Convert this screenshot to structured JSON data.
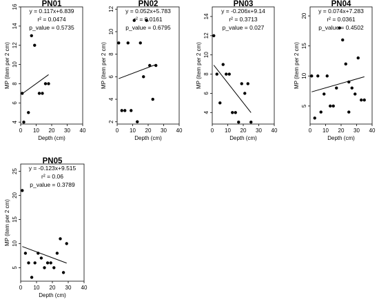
{
  "chart_data": [
    {
      "type": "scatter",
      "title": "PN01",
      "stats": [
        "y = 0.117x+6.839",
        "r² = 0.0474",
        "p_value = 0.5735"
      ],
      "xlabel": "Depth (cm)",
      "ylabel": "MP (item per 2 cm)",
      "xlim": [
        0,
        40
      ],
      "ylim": [
        3.8,
        16
      ],
      "xticks": [
        0,
        10,
        20,
        30,
        40
      ],
      "yticks": [
        4,
        6,
        8,
        10,
        12,
        14,
        16
      ],
      "points": [
        [
          1,
          7
        ],
        [
          2,
          4
        ],
        [
          5,
          5
        ],
        [
          7,
          13
        ],
        [
          9,
          12
        ],
        [
          12,
          7
        ],
        [
          14,
          7
        ],
        [
          16,
          8
        ],
        [
          18,
          8
        ]
      ],
      "fit": {
        "slope": 0.117,
        "intercept": 6.839,
        "x_range": [
          1,
          18
        ]
      }
    },
    {
      "type": "scatter",
      "title": "PN02",
      "stats": [
        "y = 0.052x+5.783",
        "r² = 0.0161",
        "p_value = 0.6795"
      ],
      "xlabel": "Depth (cm)",
      "ylabel": "MP (item per 2 cm)",
      "xlim": [
        0,
        40
      ],
      "ylim": [
        1.8,
        12.2
      ],
      "xticks": [
        0,
        10,
        20,
        30,
        40
      ],
      "yticks": [
        2,
        4,
        6,
        8,
        10,
        12
      ],
      "points": [
        [
          1,
          9
        ],
        [
          3,
          3
        ],
        [
          5,
          3
        ],
        [
          7,
          9
        ],
        [
          9,
          3
        ],
        [
          11,
          11
        ],
        [
          13,
          2
        ],
        [
          15,
          9
        ],
        [
          17,
          6
        ],
        [
          19,
          11
        ],
        [
          21,
          7
        ],
        [
          23,
          4
        ],
        [
          25,
          7
        ]
      ],
      "fit": {
        "slope": 0.052,
        "intercept": 5.783,
        "x_range": [
          1,
          25
        ]
      }
    },
    {
      "type": "scatter",
      "title": "PN03",
      "stats": [
        "y = -0.206x+9.14",
        "r² = 0.3713",
        "p_value = 0.027"
      ],
      "xlabel": "Depth (cm)",
      "ylabel": "MP (item per 2 cm)",
      "xlim": [
        0,
        40
      ],
      "ylim": [
        2.8,
        15
      ],
      "xticks": [
        0,
        10,
        20,
        30,
        40
      ],
      "yticks": [
        4,
        6,
        8,
        10,
        12,
        14
      ],
      "points": [
        [
          1,
          12
        ],
        [
          3,
          8
        ],
        [
          5,
          5
        ],
        [
          7,
          9
        ],
        [
          9,
          8
        ],
        [
          11,
          8
        ],
        [
          13,
          4
        ],
        [
          15,
          4
        ],
        [
          17,
          3
        ],
        [
          19,
          7
        ],
        [
          21,
          6
        ],
        [
          23,
          7
        ],
        [
          25,
          3
        ]
      ],
      "fit": {
        "slope": -0.206,
        "intercept": 9.14,
        "x_range": [
          1,
          25
        ]
      }
    },
    {
      "type": "scatter",
      "title": "PN04",
      "stats": [
        "y = 0.074x+7.283",
        "r² = 0.0361",
        "p_value = 0.4502"
      ],
      "xlabel": "Depth (cm)",
      "ylabel": "MP (item per 2 cm)",
      "xlim": [
        0,
        40
      ],
      "ylim": [
        2,
        21.5
      ],
      "xticks": [
        0,
        10,
        20,
        30,
        40
      ],
      "yticks": [
        5,
        10,
        15,
        20
      ],
      "points": [
        [
          1,
          10
        ],
        [
          3,
          3
        ],
        [
          5,
          10
        ],
        [
          7,
          4
        ],
        [
          9,
          7
        ],
        [
          11,
          10
        ],
        [
          13,
          5
        ],
        [
          15,
          5
        ],
        [
          17,
          8
        ],
        [
          19,
          18
        ],
        [
          21,
          16
        ],
        [
          23,
          12
        ],
        [
          25,
          9
        ],
        [
          25,
          4
        ],
        [
          27,
          8
        ],
        [
          29,
          7
        ],
        [
          31,
          13
        ],
        [
          33,
          6
        ],
        [
          35,
          6
        ]
      ],
      "fit": {
        "slope": 0.074,
        "intercept": 7.283,
        "x_range": [
          1,
          35
        ]
      }
    },
    {
      "type": "scatter",
      "title": "PN05",
      "stats": [
        "y = -0.123x+9.515",
        "r² = 0.06",
        "p_value = 0.3789"
      ],
      "xlabel": "Depth (cm)",
      "ylabel": "MP (item per 2 cm)",
      "xlim": [
        0,
        40
      ],
      "ylim": [
        2.2,
        26.5
      ],
      "xticks": [
        0,
        10,
        20,
        30,
        40
      ],
      "yticks": [
        5,
        10,
        15,
        20,
        25
      ],
      "points": [
        [
          1,
          21
        ],
        [
          3,
          8
        ],
        [
          5,
          6
        ],
        [
          7,
          3
        ],
        [
          9,
          6
        ],
        [
          11,
          8
        ],
        [
          13,
          7
        ],
        [
          15,
          5
        ],
        [
          17,
          6
        ],
        [
          19,
          6
        ],
        [
          21,
          5
        ],
        [
          23,
          8
        ],
        [
          25,
          11
        ],
        [
          27,
          4
        ],
        [
          29,
          10
        ]
      ],
      "fit": {
        "slope": -0.123,
        "intercept": 9.515,
        "x_range": [
          1,
          29
        ]
      }
    }
  ]
}
